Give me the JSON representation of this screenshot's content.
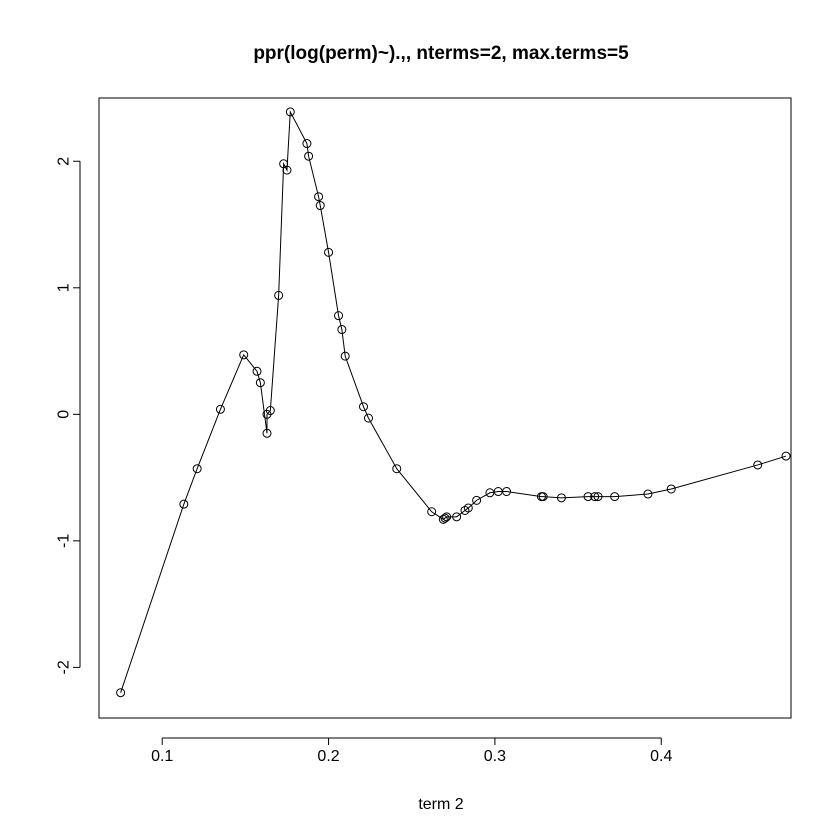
{
  "chart_data": {
    "type": "line",
    "title": "ppr(log(perm)~).,, nterms=2, max.terms=5",
    "xlabel": "term 2",
    "ylabel": "",
    "xlim": [
      0.062,
      0.478
    ],
    "ylim": [
      -2.4,
      2.5
    ],
    "xticks": [
      0.1,
      0.2,
      0.3,
      0.4
    ],
    "xtick_labels": [
      "0.1",
      "0.2",
      "0.3",
      "0.4"
    ],
    "yticks": [
      -2,
      -1,
      0,
      1,
      2
    ],
    "ytick_labels": [
      "-2",
      "-1",
      "0",
      "1",
      "2"
    ],
    "grid": false,
    "legend": "none",
    "colors": {
      "line": "#000000",
      "points": "#000000",
      "frame": "#000000"
    },
    "series": [
      {
        "x": [
          0.075,
          0.113,
          0.121,
          0.135,
          0.149,
          0.157,
          0.159,
          0.163,
          0.163,
          0.165,
          0.17,
          0.173,
          0.175,
          0.177,
          0.187,
          0.188,
          0.194,
          0.195,
          0.2,
          0.206,
          0.208,
          0.21,
          0.221,
          0.224,
          0.241,
          0.262,
          0.269,
          0.27,
          0.271,
          0.277,
          0.282,
          0.284,
          0.289,
          0.297,
          0.302,
          0.307,
          0.328,
          0.329,
          0.34,
          0.356,
          0.36,
          0.362,
          0.372,
          0.392,
          0.406,
          0.458,
          0.475
        ],
        "y": [
          -2.2,
          -0.71,
          -0.43,
          0.04,
          0.47,
          0.34,
          0.25,
          -0.15,
          0.0,
          0.03,
          0.94,
          1.98,
          1.93,
          2.39,
          2.14,
          2.04,
          1.72,
          1.65,
          1.28,
          0.78,
          0.67,
          0.46,
          0.06,
          -0.03,
          -0.43,
          -0.77,
          -0.83,
          -0.82,
          -0.81,
          -0.81,
          -0.76,
          -0.74,
          -0.68,
          -0.62,
          -0.61,
          -0.61,
          -0.65,
          -0.65,
          -0.66,
          -0.65,
          -0.65,
          -0.65,
          -0.65,
          -0.63,
          -0.59,
          -0.4,
          -0.33
        ]
      }
    ]
  }
}
